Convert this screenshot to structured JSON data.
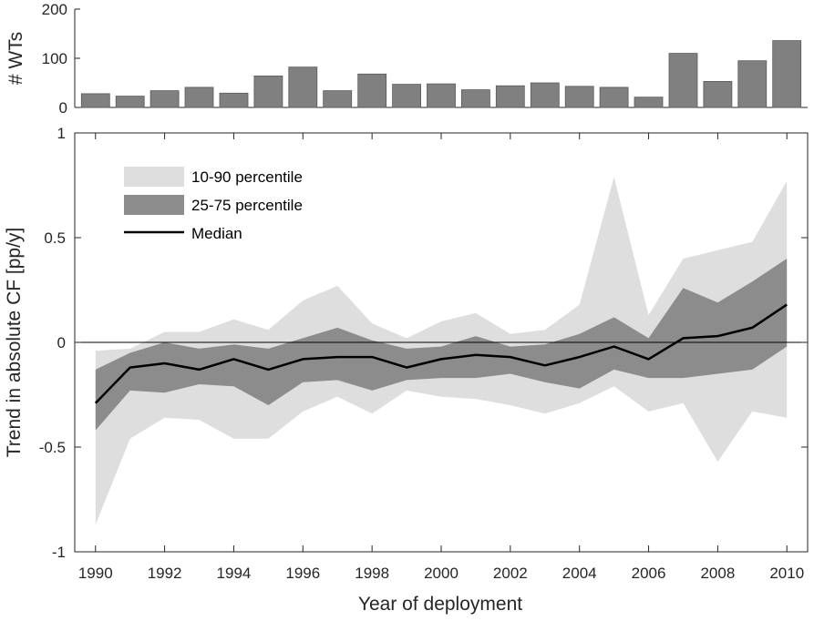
{
  "chart_data": [
    {
      "type": "bar",
      "ylabel": "# WTs",
      "ylim": [
        0,
        200
      ],
      "yticks": [
        0,
        100,
        200
      ],
      "x": [
        1990,
        1991,
        1992,
        1993,
        1994,
        1995,
        1996,
        1997,
        1998,
        1999,
        2000,
        2001,
        2002,
        2003,
        2004,
        2005,
        2006,
        2007,
        2008,
        2009,
        2010
      ],
      "values": [
        28,
        23,
        34,
        41,
        29,
        64,
        82,
        34,
        68,
        47,
        48,
        36,
        44,
        50,
        43,
        41,
        21,
        110,
        53,
        95,
        136
      ],
      "colors": {
        "bar": "#808080",
        "edge": "#5a5a5a"
      }
    },
    {
      "type": "area",
      "xlabel": "Year of deployment",
      "ylabel": "Trend in absolute CF [pp/y]",
      "xlim": [
        1989.4,
        2010.6
      ],
      "ylim": [
        -1,
        1
      ],
      "xticks": [
        1990,
        1992,
        1994,
        1996,
        1998,
        2000,
        2002,
        2004,
        2006,
        2008,
        2010
      ],
      "xtick_labels": [
        "1990",
        "1992",
        "1994",
        "1996",
        "1998",
        "2000",
        "2002",
        "2004",
        "2006",
        "2008",
        "2010"
      ],
      "yticks": [
        -1,
        -0.5,
        0,
        0.5,
        1
      ],
      "ytick_labels": [
        "-1",
        "-0.5",
        "0",
        "0.5",
        "1"
      ],
      "reference_line": 0,
      "legend_position": "top-left",
      "x": [
        1990,
        1991,
        1992,
        1993,
        1994,
        1995,
        1996,
        1997,
        1998,
        1999,
        2000,
        2001,
        2002,
        2003,
        2004,
        2005,
        2006,
        2007,
        2008,
        2009,
        2010
      ],
      "series": [
        {
          "name": "10-90 percentile",
          "color": "#dedede",
          "lower": [
            -0.87,
            -0.46,
            -0.36,
            -0.37,
            -0.46,
            -0.46,
            -0.33,
            -0.26,
            -0.34,
            -0.23,
            -0.26,
            -0.27,
            -0.3,
            -0.34,
            -0.29,
            -0.21,
            -0.33,
            -0.29,
            -0.57,
            -0.33,
            -0.36
          ],
          "upper": [
            -0.04,
            -0.03,
            0.05,
            0.05,
            0.11,
            0.06,
            0.2,
            0.27,
            0.09,
            0.02,
            0.1,
            0.14,
            0.04,
            0.06,
            0.18,
            0.79,
            0.13,
            0.4,
            0.44,
            0.48,
            0.77
          ]
        },
        {
          "name": "25-75 percentile",
          "color": "#8c8c8c",
          "lower": [
            -0.42,
            -0.23,
            -0.24,
            -0.2,
            -0.21,
            -0.3,
            -0.19,
            -0.18,
            -0.23,
            -0.18,
            -0.17,
            -0.17,
            -0.15,
            -0.19,
            -0.22,
            -0.13,
            -0.17,
            -0.17,
            -0.15,
            -0.13,
            -0.02
          ],
          "upper": [
            -0.13,
            -0.05,
            0.0,
            -0.03,
            -0.01,
            -0.03,
            0.02,
            0.07,
            0.01,
            -0.03,
            -0.02,
            0.03,
            -0.02,
            -0.01,
            0.04,
            0.12,
            0.02,
            0.26,
            0.19,
            0.29,
            0.4
          ]
        },
        {
          "name": "Median",
          "color": "#000000",
          "values": [
            -0.29,
            -0.12,
            -0.1,
            -0.13,
            -0.08,
            -0.13,
            -0.08,
            -0.07,
            -0.07,
            -0.12,
            -0.08,
            -0.06,
            -0.07,
            -0.11,
            -0.07,
            -0.02,
            -0.08,
            0.02,
            0.03,
            0.07,
            0.18
          ]
        }
      ]
    }
  ]
}
